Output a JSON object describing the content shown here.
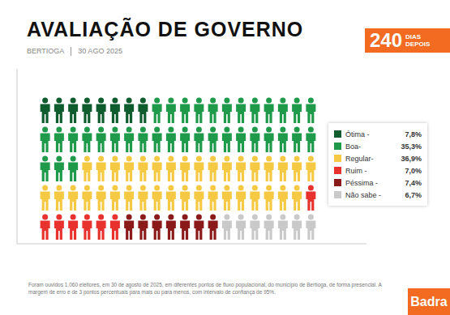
{
  "chart_data": {
    "type": "waffle",
    "title": "AVALIAÇÃO DE GOVERNO",
    "subtitle": [
      "BERTIOGA",
      "30 AGO 2025"
    ],
    "badge": [
      "240",
      "DIAS",
      "DEPOIS"
    ],
    "categories": [
      "Ótima -",
      "Boa-",
      "Regular-",
      "Ruim -",
      "Péssima -",
      "Não sabe -"
    ],
    "values": [
      7.8,
      35.3,
      36.9,
      7.0,
      7.4,
      6.7
    ],
    "value_labels": [
      "7,8%",
      "35,3%",
      "36,9%",
      "7,0%",
      "7,4%",
      "6,7%"
    ],
    "colors": [
      "#0f5c2e",
      "#1f9a4b",
      "#f6c945",
      "#e8322e",
      "#8b1a1a",
      "#c9c9c9"
    ],
    "data_labels": true,
    "tick_labels": false,
    "legend": "right",
    "note": "Foram ouvidos 1.060 eleitores, em 30 de agosto de 2025, em diferentes pontos de fluxo populacional, do município de Bertioga, de forma presencial. A margem de erro é de 3 pontos percentuais para mais ou para menos, com intervalo de confiança de 95%.",
    "source": "Badra"
  }
}
